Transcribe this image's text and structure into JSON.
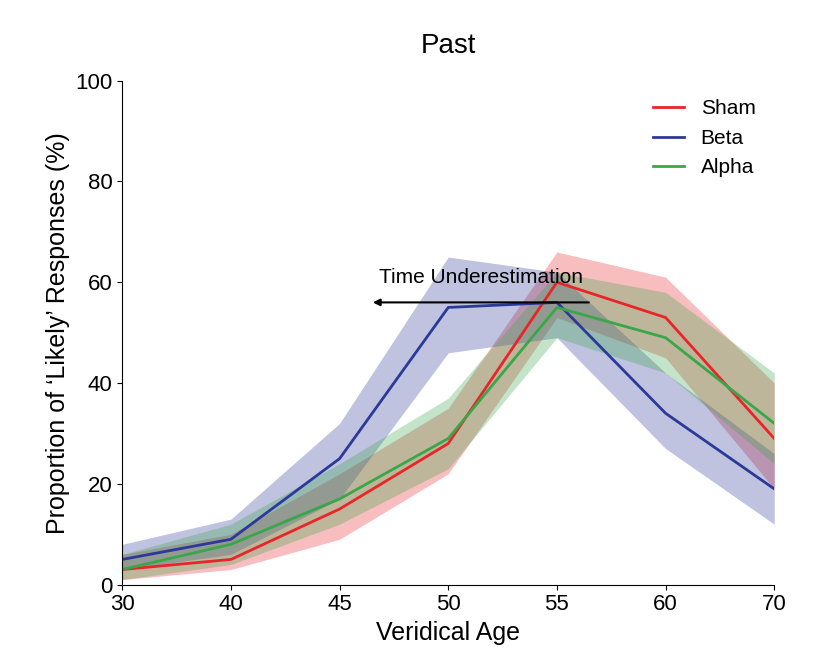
{
  "chart_data": {
    "type": "line",
    "title": "Past",
    "x_label": "Veridical Age",
    "y_label": "Proportion of ‘Likely’ Responses (%)",
    "categories": [
      "30",
      "40",
      "45",
      "50",
      "55",
      "60",
      "70"
    ],
    "ylim": [
      0,
      100
    ],
    "yticks": [
      0,
      20,
      40,
      60,
      80,
      100
    ],
    "legend": "upper right",
    "annotations": [
      "Time Underestimation"
    ],
    "series": [
      {
        "name": "Sham",
        "color": "#e8262a",
        "values": [
          3,
          5,
          15,
          28,
          60,
          53,
          29
        ],
        "lower": [
          1,
          3,
          9,
          22,
          53,
          45,
          19
        ],
        "upper": [
          6,
          10,
          22,
          35,
          66,
          61,
          40
        ]
      },
      {
        "name": "Beta",
        "color": "#2b3a98",
        "values": [
          5,
          9,
          25,
          55,
          56,
          34,
          19
        ],
        "lower": [
          3,
          6,
          17,
          46,
          49,
          27,
          12
        ],
        "upper": [
          8,
          13,
          32,
          65,
          62,
          42,
          26
        ]
      },
      {
        "name": "Alpha",
        "color": "#3aa64a",
        "values": [
          3,
          8,
          17,
          29,
          55,
          49,
          32
        ],
        "lower": [
          1,
          4,
          12,
          23,
          49,
          42,
          24
        ],
        "upper": [
          6,
          12,
          24,
          37,
          62,
          58,
          42
        ]
      }
    ]
  }
}
